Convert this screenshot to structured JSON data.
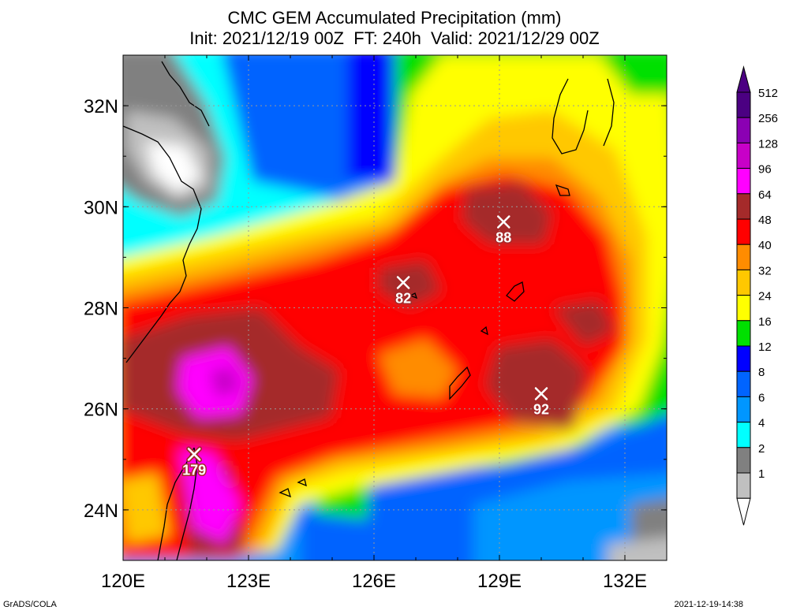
{
  "header": {
    "title": "CMC GEM Accumulated Precipitation (mm)",
    "subtitle": "Init: 2021/12/19 00Z  FT: 240h  Valid: 2021/12/29 00Z"
  },
  "map": {
    "lon_labels": [
      "120E",
      "123E",
      "126E",
      "129E",
      "132E"
    ],
    "lat_labels": [
      "32N",
      "30N",
      "28N",
      "26N",
      "24N"
    ],
    "lon_values": [
      120,
      123,
      126,
      129,
      132
    ],
    "lat_values": [
      32,
      30,
      28,
      26,
      24
    ],
    "extent": {
      "lon": [
        120,
        133
      ],
      "lat": [
        23,
        33
      ]
    },
    "maxima": [
      {
        "lon": 129.1,
        "lat": 29.7,
        "value": "88"
      },
      {
        "lon": 126.7,
        "lat": 28.5,
        "value": "82"
      },
      {
        "lon": 130.0,
        "lat": 26.3,
        "value": "92"
      },
      {
        "lon": 121.7,
        "lat": 25.1,
        "value": "179"
      }
    ]
  },
  "colorbar": {
    "levels": [
      {
        "label": "512",
        "color": "#4b0082"
      },
      {
        "label": "256",
        "color": "#8b00b3"
      },
      {
        "label": "128",
        "color": "#c800c8"
      },
      {
        "label": "96",
        "color": "#ff00ff"
      },
      {
        "label": "64",
        "color": "#a52a2a"
      },
      {
        "label": "48",
        "color": "#ff0000"
      },
      {
        "label": "40",
        "color": "#ff8c00"
      },
      {
        "label": "32",
        "color": "#ffc800"
      },
      {
        "label": "24",
        "color": "#ffff00"
      },
      {
        "label": "16",
        "color": "#00e000"
      },
      {
        "label": "12",
        "color": "#0000ff"
      },
      {
        "label": "8",
        "color": "#0064ff"
      },
      {
        "label": "6",
        "color": "#0096ff"
      },
      {
        "label": "4",
        "color": "#00ffff"
      },
      {
        "label": "2",
        "color": "#808080"
      },
      {
        "label": "1",
        "color": "#c0c0c0"
      }
    ],
    "top_color": "#4b0082",
    "bottom_color": "#ffffff"
  },
  "footer": {
    "credit": "GrADS/COLA",
    "timestamp": "2021-12-19-14:38"
  }
}
